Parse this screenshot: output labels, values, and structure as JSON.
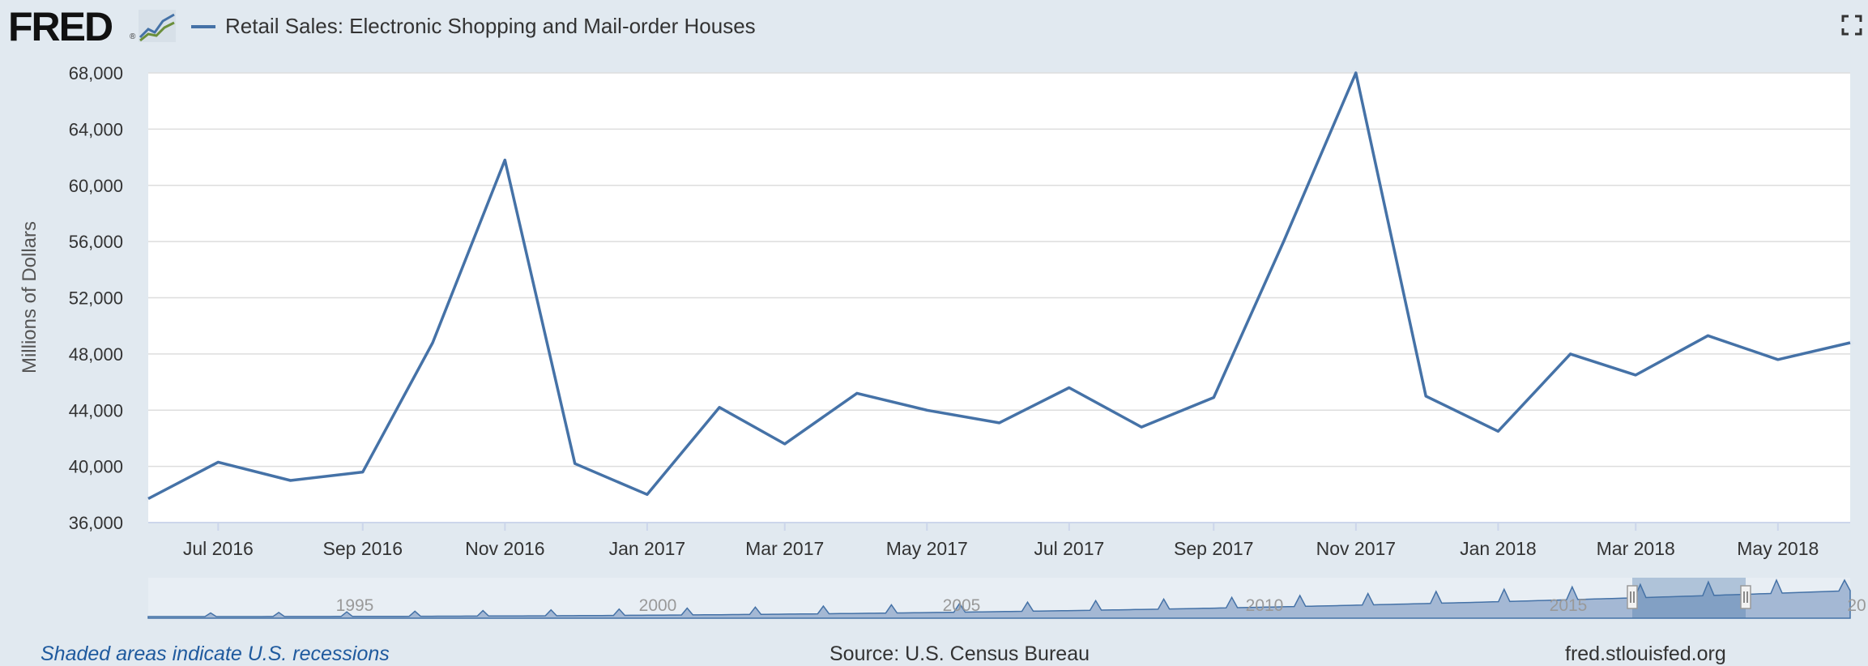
{
  "header": {
    "logo_text": "FRED",
    "logo_mark": "®",
    "series_name": "Retail Sales: Electronic Shopping and Mail-order Houses",
    "series_color": "#4572a7",
    "fullscreen_icon": "fullscreen-icon",
    "graph_icon": "fred-graph-icon"
  },
  "chart_data": {
    "type": "line",
    "title": "",
    "ylabel": "Millions of Dollars",
    "xlabel": "",
    "ylim": [
      36000,
      68000
    ],
    "yticks": [
      "36,000",
      "40,000",
      "44,000",
      "48,000",
      "52,000",
      "56,000",
      "60,000",
      "64,000",
      "68,000"
    ],
    "ytick_values": [
      36000,
      40000,
      44000,
      48000,
      52000,
      56000,
      60000,
      64000,
      68000
    ],
    "xlim": [
      "2016-06-01",
      "2018-06-01"
    ],
    "xticks": [
      {
        "label": "Jul 2016",
        "date": "2016-07-01"
      },
      {
        "label": "Sep 2016",
        "date": "2016-09-01"
      },
      {
        "label": "Nov 2016",
        "date": "2016-11-01"
      },
      {
        "label": "Jan 2017",
        "date": "2017-01-01"
      },
      {
        "label": "Mar 2017",
        "date": "2017-03-01"
      },
      {
        "label": "May 2017",
        "date": "2017-05-01"
      },
      {
        "label": "Jul 2017",
        "date": "2017-07-01"
      },
      {
        "label": "Sep 2017",
        "date": "2017-09-01"
      },
      {
        "label": "Nov 2017",
        "date": "2017-11-01"
      },
      {
        "label": "Jan 2018",
        "date": "2018-01-01"
      },
      {
        "label": "Mar 2018",
        "date": "2018-03-01"
      },
      {
        "label": "May 2018",
        "date": "2018-05-01"
      }
    ],
    "grid": true,
    "series": [
      {
        "name": "Retail Sales: Electronic Shopping and Mail-order Houses",
        "color": "#4572a7",
        "x": [
          "2016-06-01",
          "2016-07-01",
          "2016-08-01",
          "2016-09-01",
          "2016-10-01",
          "2016-11-01",
          "2016-12-01",
          "2017-01-01",
          "2017-02-01",
          "2017-03-01",
          "2017-04-01",
          "2017-05-01",
          "2017-06-01",
          "2017-07-01",
          "2017-08-01",
          "2017-09-01",
          "2017-10-01",
          "2017-11-01",
          "2017-12-01",
          "2018-01-01",
          "2018-02-01",
          "2018-03-01",
          "2018-04-01",
          "2018-05-01",
          "2018-06-01"
        ],
        "values": [
          37700,
          40300,
          39000,
          39600,
          48800,
          61800,
          40200,
          38000,
          44200,
          41600,
          45200,
          44000,
          43100,
          45600,
          42800,
          44900,
          56000,
          68000,
          45000,
          42500,
          48000,
          46500,
          49300,
          47600,
          48800
        ]
      }
    ],
    "navigator": {
      "labels": [
        "1995",
        "2000",
        "2005",
        "2010",
        "2015",
        "20"
      ]
    },
    "chart_bg": "#ffffff",
    "page_bg": "#e1e9f0",
    "grid_color": "#dddddd",
    "tick_label_color": "#333333"
  },
  "footer": {
    "recessions_note": "Shaded areas indicate U.S. recessions",
    "source": "Source: U.S. Census Bureau",
    "url": "fred.stlouisfed.org"
  }
}
